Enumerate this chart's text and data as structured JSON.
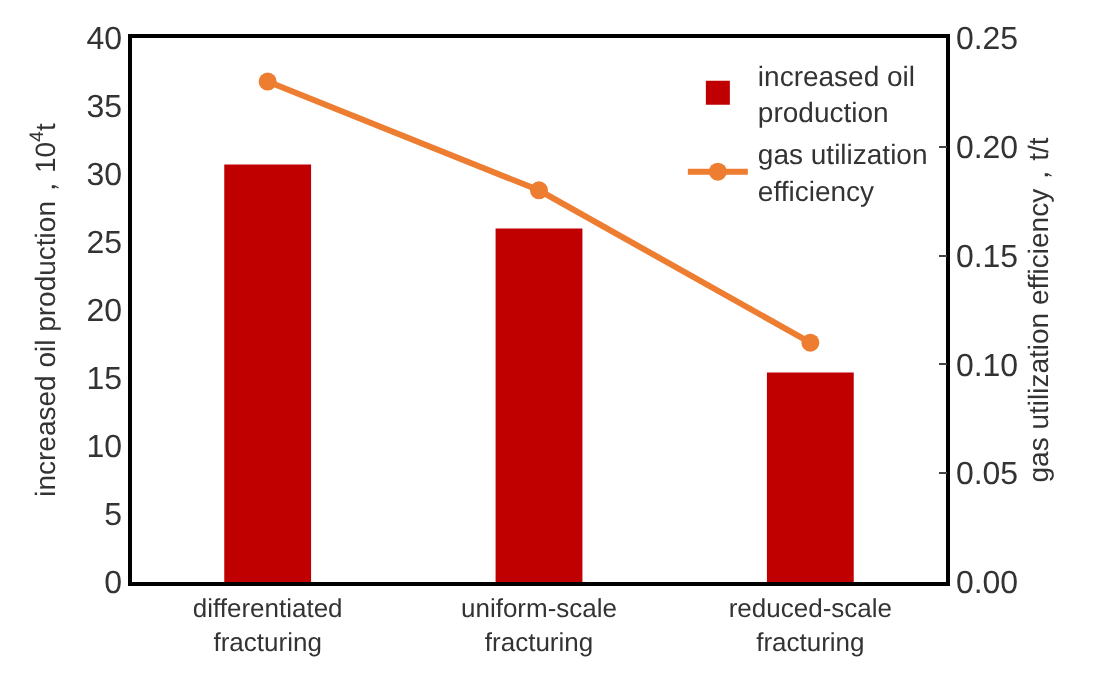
{
  "chart_data": {
    "type": "bar",
    "categories": [
      "differentiated\nfracturing",
      "uniform-scale\nfracturing",
      "reduced-scale\nfracturing"
    ],
    "series": [
      {
        "name": "increased oil\nproduction",
        "color": "#c00000",
        "values": [
          30.7,
          26.0,
          15.4
        ]
      },
      {
        "name": "gas utilization\nefficiency",
        "type": "line",
        "axis": "y2",
        "color": "#ed7d31",
        "marker": "circle",
        "values": [
          0.23,
          0.18,
          0.11
        ]
      }
    ],
    "ylabel": "increased oil production，10$^{4}$t",
    "y2label": "gas utilization efficiency，t/t",
    "ylim": [
      0,
      40
    ],
    "yticks": [
      0,
      5,
      10,
      15,
      20,
      25,
      30,
      35,
      40
    ],
    "y2lim": [
      0,
      0.25
    ],
    "y2ticks": [
      {
        "value": 0,
        "label": "0.00"
      },
      {
        "value": 0.05,
        "label": "0.05"
      },
      {
        "value": 0.1,
        "label": "0.10"
      },
      {
        "value": 0.15,
        "label": "0.15"
      },
      {
        "value": 0.2,
        "label": "0.20"
      },
      {
        "value": 0.25,
        "label": "0.25"
      }
    ],
    "grid": false,
    "legend": "top right"
  }
}
